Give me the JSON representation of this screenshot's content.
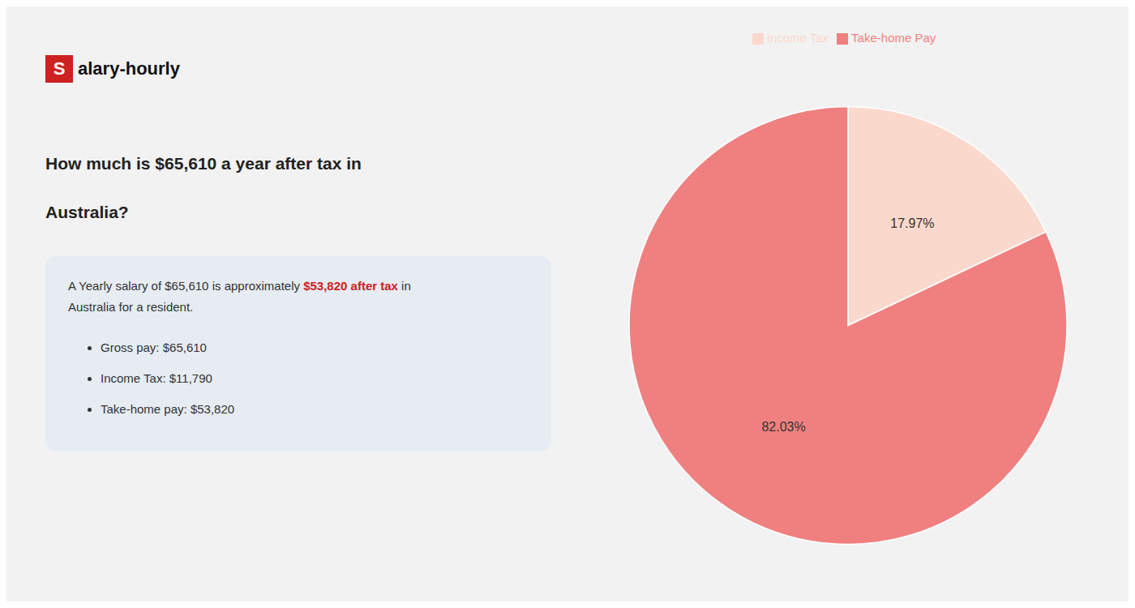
{
  "chart_data": {
    "type": "pie",
    "title": [
      "How much is $65,610 a year after tax in",
      "Australia?"
    ],
    "annotations": [
      "S",
      "alary-hourly",
      "A Yearly salary of $65,610 is approximately ",
      "$53,820 after tax",
      " in",
      "Australia for a resident.",
      "Gross pay: $65,610",
      "Income Tax: $11,790",
      "Take-home pay: $53,820"
    ],
    "categories": [
      "Income Tax",
      "Take-home Pay"
    ],
    "values": [
      17.97,
      82.03
    ],
    "value_labels": [
      "17.97%",
      "82.03%"
    ],
    "colors": [
      "#fad9cc",
      "#f08080"
    ],
    "data_labels": true,
    "legend": "top"
  }
}
